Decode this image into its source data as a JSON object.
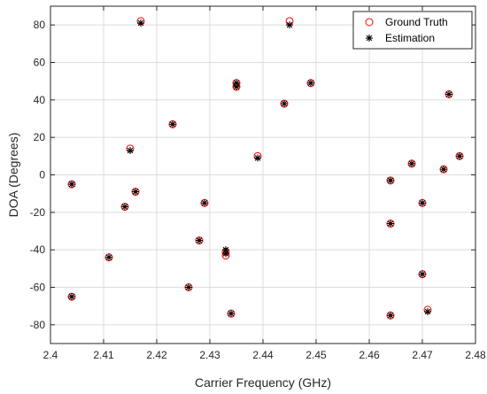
{
  "chart_data": {
    "type": "scatter",
    "title": "",
    "xlabel": "Carrier Frequency (GHz)",
    "ylabel": "DOA (Degrees)",
    "xlim": [
      2.4,
      2.48
    ],
    "ylim": [
      -90,
      90
    ],
    "xticks": [
      "2.4",
      "2.41",
      "2.42",
      "2.43",
      "2.44",
      "2.45",
      "2.46",
      "2.47",
      "2.48"
    ],
    "yticks": [
      "-80",
      "-60",
      "-40",
      "-20",
      "0",
      "20",
      "40",
      "60",
      "80"
    ],
    "grid": true,
    "legend_position": "top-right",
    "series": [
      {
        "name": "Ground Truth",
        "marker": "circle",
        "color": "#ff0000",
        "points": [
          [
            2.417,
            82
          ],
          [
            2.445,
            82
          ],
          [
            2.435,
            49
          ],
          [
            2.435,
            47
          ],
          [
            2.444,
            38
          ],
          [
            2.449,
            49
          ],
          [
            2.423,
            27
          ],
          [
            2.415,
            14
          ],
          [
            2.439,
            10
          ],
          [
            2.404,
            -5
          ],
          [
            2.416,
            -9
          ],
          [
            2.414,
            -17
          ],
          [
            2.429,
            -15
          ],
          [
            2.428,
            -35
          ],
          [
            2.433,
            -41
          ],
          [
            2.433,
            -43
          ],
          [
            2.411,
            -44
          ],
          [
            2.426,
            -60
          ],
          [
            2.404,
            -65
          ],
          [
            2.434,
            -74
          ],
          [
            2.475,
            43
          ],
          [
            2.477,
            10
          ],
          [
            2.468,
            6
          ],
          [
            2.474,
            3
          ],
          [
            2.464,
            -3
          ],
          [
            2.47,
            -15
          ],
          [
            2.464,
            -26
          ],
          [
            2.47,
            -53
          ],
          [
            2.464,
            -75
          ],
          [
            2.471,
            -72
          ]
        ]
      },
      {
        "name": "Estimation",
        "marker": "asterisk",
        "color": "#000000",
        "points": [
          [
            2.417,
            81
          ],
          [
            2.445,
            80
          ],
          [
            2.435,
            49
          ],
          [
            2.435,
            47
          ],
          [
            2.444,
            38
          ],
          [
            2.449,
            49
          ],
          [
            2.423,
            27
          ],
          [
            2.415,
            13
          ],
          [
            2.439,
            9
          ],
          [
            2.404,
            -5
          ],
          [
            2.416,
            -9
          ],
          [
            2.414,
            -17
          ],
          [
            2.429,
            -15
          ],
          [
            2.428,
            -35
          ],
          [
            2.433,
            -40
          ],
          [
            2.433,
            -42
          ],
          [
            2.411,
            -44
          ],
          [
            2.426,
            -60
          ],
          [
            2.404,
            -65
          ],
          [
            2.434,
            -74
          ],
          [
            2.475,
            43
          ],
          [
            2.477,
            10
          ],
          [
            2.468,
            6
          ],
          [
            2.474,
            3
          ],
          [
            2.464,
            -3
          ],
          [
            2.47,
            -15
          ],
          [
            2.464,
            -26
          ],
          [
            2.47,
            -53
          ],
          [
            2.464,
            -75
          ],
          [
            2.471,
            -73
          ]
        ]
      }
    ]
  }
}
